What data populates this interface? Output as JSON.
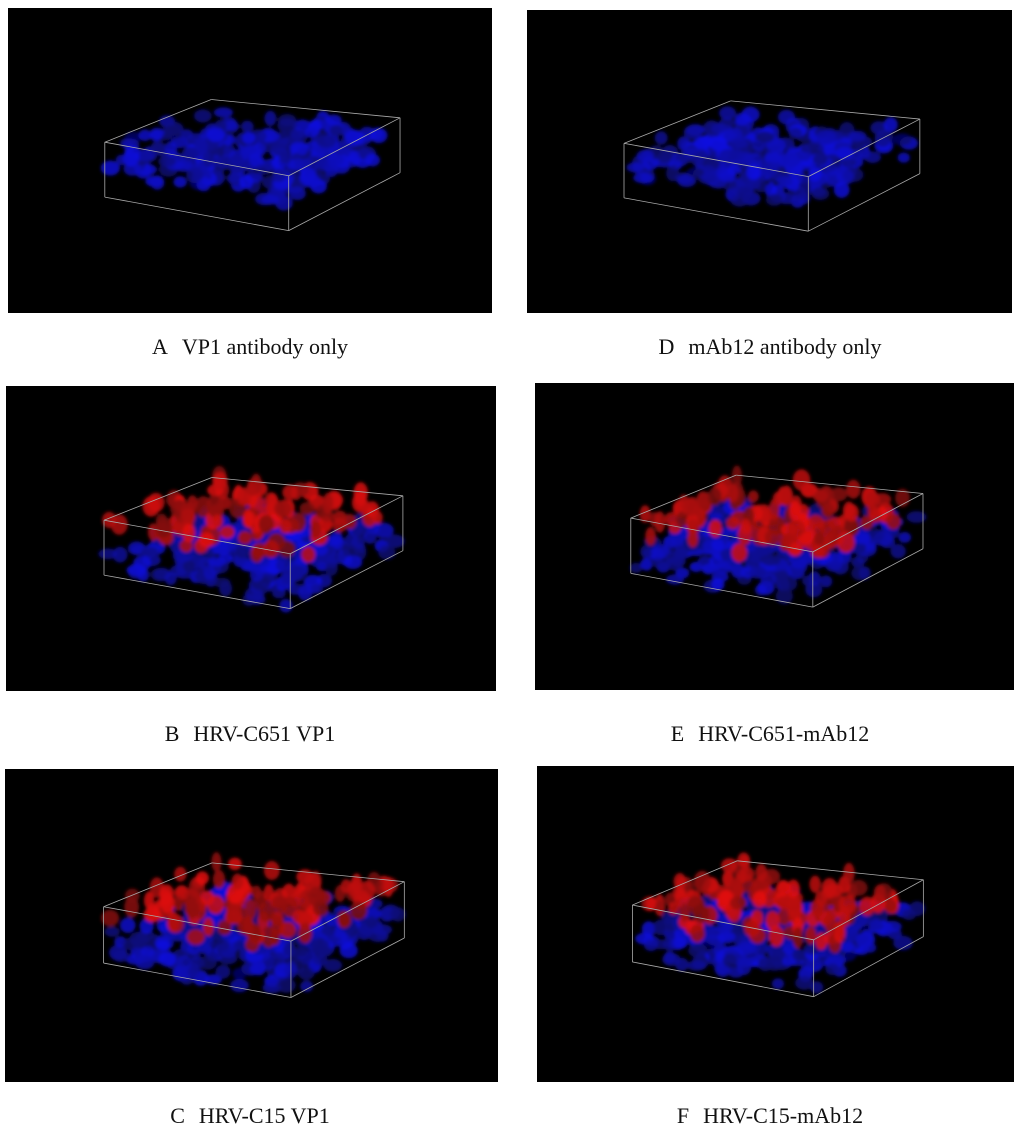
{
  "panels": [
    {
      "letter": "A",
      "label": "VP1 antibody only"
    },
    {
      "letter": "D",
      "label": "mAb12 antibody only"
    },
    {
      "letter": "B",
      "label": "HRV-C651 VP1"
    },
    {
      "letter": "E",
      "label": "HRV-C651-mAb12"
    },
    {
      "letter": "C",
      "label": "HRV-C15 VP1"
    },
    {
      "letter": "F",
      "label": "HRV-C15-mAb12"
    }
  ]
}
